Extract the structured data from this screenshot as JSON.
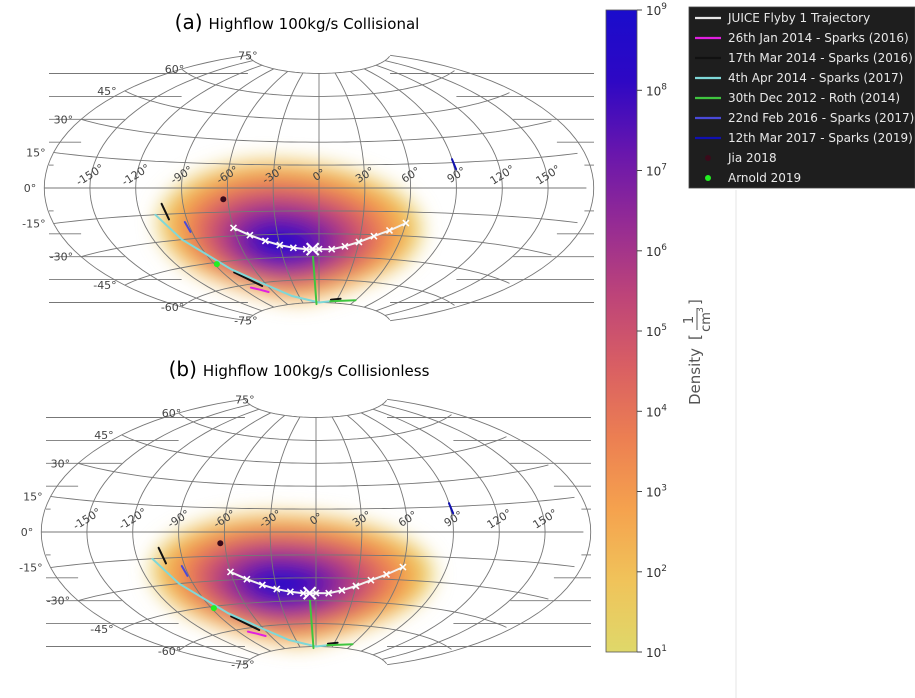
{
  "chart_data": [
    {
      "type": "scatter",
      "projection": "aitoff",
      "panel_label": "(a)",
      "title": "Highflow 100kg/s Collisional",
      "lon_ticks": [
        "-150°",
        "-120°",
        "-90°",
        "-60°",
        "-30°",
        "0°",
        "30°",
        "60°",
        "90°",
        "120°",
        "150°"
      ],
      "lat_ticks": [
        "75°",
        "60°",
        "45°",
        "30°",
        "15°",
        "0°",
        "-15°",
        "-30°",
        "-45°",
        "-60°",
        "-75°"
      ],
      "density_field": {
        "lon_range": [
          -115,
          75
        ],
        "lat_range": [
          -72,
          18
        ],
        "peak_lat": -38,
        "peak_log_density": 9,
        "edge_log_density": 1.3
      },
      "trajectory": {
        "lon": [
          -60,
          -50,
          -40,
          -30,
          -20,
          -10,
          0,
          10,
          20,
          30,
          40,
          50,
          60
        ],
        "lat": [
          -25,
          -30,
          -34,
          -37,
          -39,
          -40,
          -40,
          -40,
          -38,
          -35,
          -31,
          -27,
          -22
        ],
        "closest_approach": {
          "lon": -5,
          "lat": -40
        }
      },
      "auroral_arcs": [
        {
          "series": "26th Jan 2014 - Sparks (2016)",
          "lon": [
            -80,
            -73,
            -66
          ],
          "lat": [
            -62,
            -64,
            -66
          ]
        },
        {
          "series": "17th Mar 2014 - Sparks (2016)",
          "lon": [
            -104,
            -102
          ],
          "lat": [
            -9,
            -18
          ]
        },
        {
          "series": "17th Mar 2014 - Sparks (2016)",
          "lon": [
            -80,
            -66
          ],
          "lat": [
            -52,
            -62
          ]
        },
        {
          "series": "17th Mar 2014 - Sparks (2016)",
          "lon": [
            20,
            35
          ],
          "lat": [
            -73,
            -72
          ]
        },
        {
          "series": "4th Apr 2014 - Sparks (2017)",
          "lon": [
            -110,
            -100,
            -80,
            -60,
            -40,
            0,
            20
          ],
          "lat": [
            -15,
            -30,
            -50,
            -62,
            -70,
            -75,
            -74
          ]
        },
        {
          "series": "30th Dec 2012 - Roth (2014)",
          "lon": [
            -5,
            -5
          ],
          "lat": [
            -45,
            -76
          ]
        },
        {
          "series": "30th Dec 2012 - Roth (2014)",
          "lon": [
            20,
            60
          ],
          "lat": [
            -74,
            -72
          ]
        },
        {
          "series": "22nd Feb 2016 - Sparks (2017)",
          "lon": [
            -92,
            -91
          ],
          "lat": [
            -20,
            -26
          ]
        },
        {
          "series": "12th Mar 2017 - Sparks (2019)",
          "lon": [
            90,
            91
          ],
          "lat": [
            17,
            11
          ]
        }
      ],
      "points": [
        {
          "series": "Jia 2018",
          "lon": -63,
          "lat": -7
        },
        {
          "series": "Arnold 2019",
          "lon": -88,
          "lat": -46
        }
      ]
    },
    {
      "type": "scatter",
      "projection": "aitoff",
      "panel_label": "(b)",
      "title": "Highflow 100kg/s Collisionless",
      "lon_ticks": [
        "-150°",
        "-120°",
        "-90°",
        "-60°",
        "-30°",
        "0°",
        "30°",
        "60°",
        "90°",
        "120°",
        "150°"
      ],
      "lat_ticks": [
        "75°",
        "60°",
        "45°",
        "30°",
        "15°",
        "0°",
        "-15°",
        "-30°",
        "-45°",
        "-60°",
        "-75°"
      ],
      "density_field": {
        "lon_range": [
          -118,
          85
        ],
        "lat_range": [
          -72,
          12
        ],
        "peak_lat": -35,
        "peak_log_density": 9,
        "edge_log_density": 1.3
      },
      "trajectory": {
        "lon": [
          -60,
          -50,
          -40,
          -30,
          -20,
          -10,
          0,
          10,
          20,
          30,
          40,
          50,
          60
        ],
        "lat": [
          -25,
          -30,
          -34,
          -37,
          -39,
          -40,
          -40,
          -40,
          -38,
          -35,
          -31,
          -27,
          -22
        ],
        "closest_approach": {
          "lon": -5,
          "lat": -40
        }
      },
      "auroral_arcs": [
        {
          "series": "26th Jan 2014 - Sparks (2016)",
          "lon": [
            -80,
            -73,
            -66
          ],
          "lat": [
            -62,
            -64,
            -66
          ]
        },
        {
          "series": "17th Mar 2014 - Sparks (2016)",
          "lon": [
            -104,
            -102
          ],
          "lat": [
            -9,
            -18
          ]
        },
        {
          "series": "17th Mar 2014 - Sparks (2016)",
          "lon": [
            -80,
            -66
          ],
          "lat": [
            -52,
            -62
          ]
        },
        {
          "series": "17th Mar 2014 - Sparks (2016)",
          "lon": [
            20,
            35
          ],
          "lat": [
            -73,
            -72
          ]
        },
        {
          "series": "4th Apr 2014 - Sparks (2017)",
          "lon": [
            -110,
            -100,
            -80,
            -60,
            -40,
            0,
            20
          ],
          "lat": [
            -15,
            -30,
            -50,
            -62,
            -70,
            -75,
            -74
          ]
        },
        {
          "series": "30th Dec 2012 - Roth (2014)",
          "lon": [
            -5,
            -5
          ],
          "lat": [
            -45,
            -76
          ]
        },
        {
          "series": "30th Dec 2012 - Roth (2014)",
          "lon": [
            20,
            60
          ],
          "lat": [
            -74,
            -72
          ]
        },
        {
          "series": "22nd Feb 2016 - Sparks (2017)",
          "lon": [
            -92,
            -91
          ],
          "lat": [
            -20,
            -26
          ]
        },
        {
          "series": "12th Mar 2017 - Sparks (2019)",
          "lon": [
            90,
            91
          ],
          "lat": [
            17,
            11
          ]
        }
      ],
      "points": [
        {
          "series": "Jia 2018",
          "lon": -63,
          "lat": -7
        },
        {
          "series": "Arnold 2019",
          "lon": -88,
          "lat": -46
        }
      ]
    }
  ],
  "colorbar": {
    "label": "Density",
    "unit_num": "1",
    "unit_den": "cm",
    "unit_exp": "3",
    "scale": "log",
    "range": [
      1,
      9
    ],
    "ticks": [
      {
        "base": "10",
        "exp": "9",
        "value": 9
      },
      {
        "base": "10",
        "exp": "8",
        "value": 8
      },
      {
        "base": "10",
        "exp": "7",
        "value": 7
      },
      {
        "base": "10",
        "exp": "6",
        "value": 6
      },
      {
        "base": "10",
        "exp": "5",
        "value": 5
      },
      {
        "base": "10",
        "exp": "4",
        "value": 4
      },
      {
        "base": "10",
        "exp": "3",
        "value": 3
      },
      {
        "base": "10",
        "exp": "2",
        "value": 2
      },
      {
        "base": "10",
        "exp": "1",
        "value": 1
      }
    ],
    "colors": [
      "#dfd86a",
      "#f0c35a",
      "#f5a24e",
      "#ec7f52",
      "#d95f63",
      "#bd4479",
      "#952b94",
      "#6816ad",
      "#2e08c4",
      "#1a0ccc"
    ]
  },
  "legend": {
    "placement": "right-top",
    "entries": [
      {
        "label": "JUICE Flyby 1 Trajectory",
        "kind": "line",
        "color": "#e8e8e8"
      },
      {
        "label": "26th Jan 2014 - Sparks (2016)",
        "kind": "line",
        "color": "#e020e0"
      },
      {
        "label": "17th Mar 2014 - Sparks (2016)",
        "kind": "line",
        "color": "#111111"
      },
      {
        "label": "4th Apr 2014 - Sparks (2017)",
        "kind": "line",
        "color": "#7fd8d8"
      },
      {
        "label": "30th Dec 2012 - Roth (2014)",
        "kind": "line",
        "color": "#3fc53f"
      },
      {
        "label": "22nd Feb 2016 - Sparks (2017)",
        "kind": "line",
        "color": "#4a4ad8"
      },
      {
        "label": "12th Mar 2017 - Sparks (2019)",
        "kind": "line",
        "color": "#1010b0"
      },
      {
        "label": "Jia 2018",
        "kind": "point",
        "color": "#3a0a1a"
      },
      {
        "label": "Arnold 2019",
        "kind": "point",
        "color": "#22ee22"
      }
    ]
  }
}
